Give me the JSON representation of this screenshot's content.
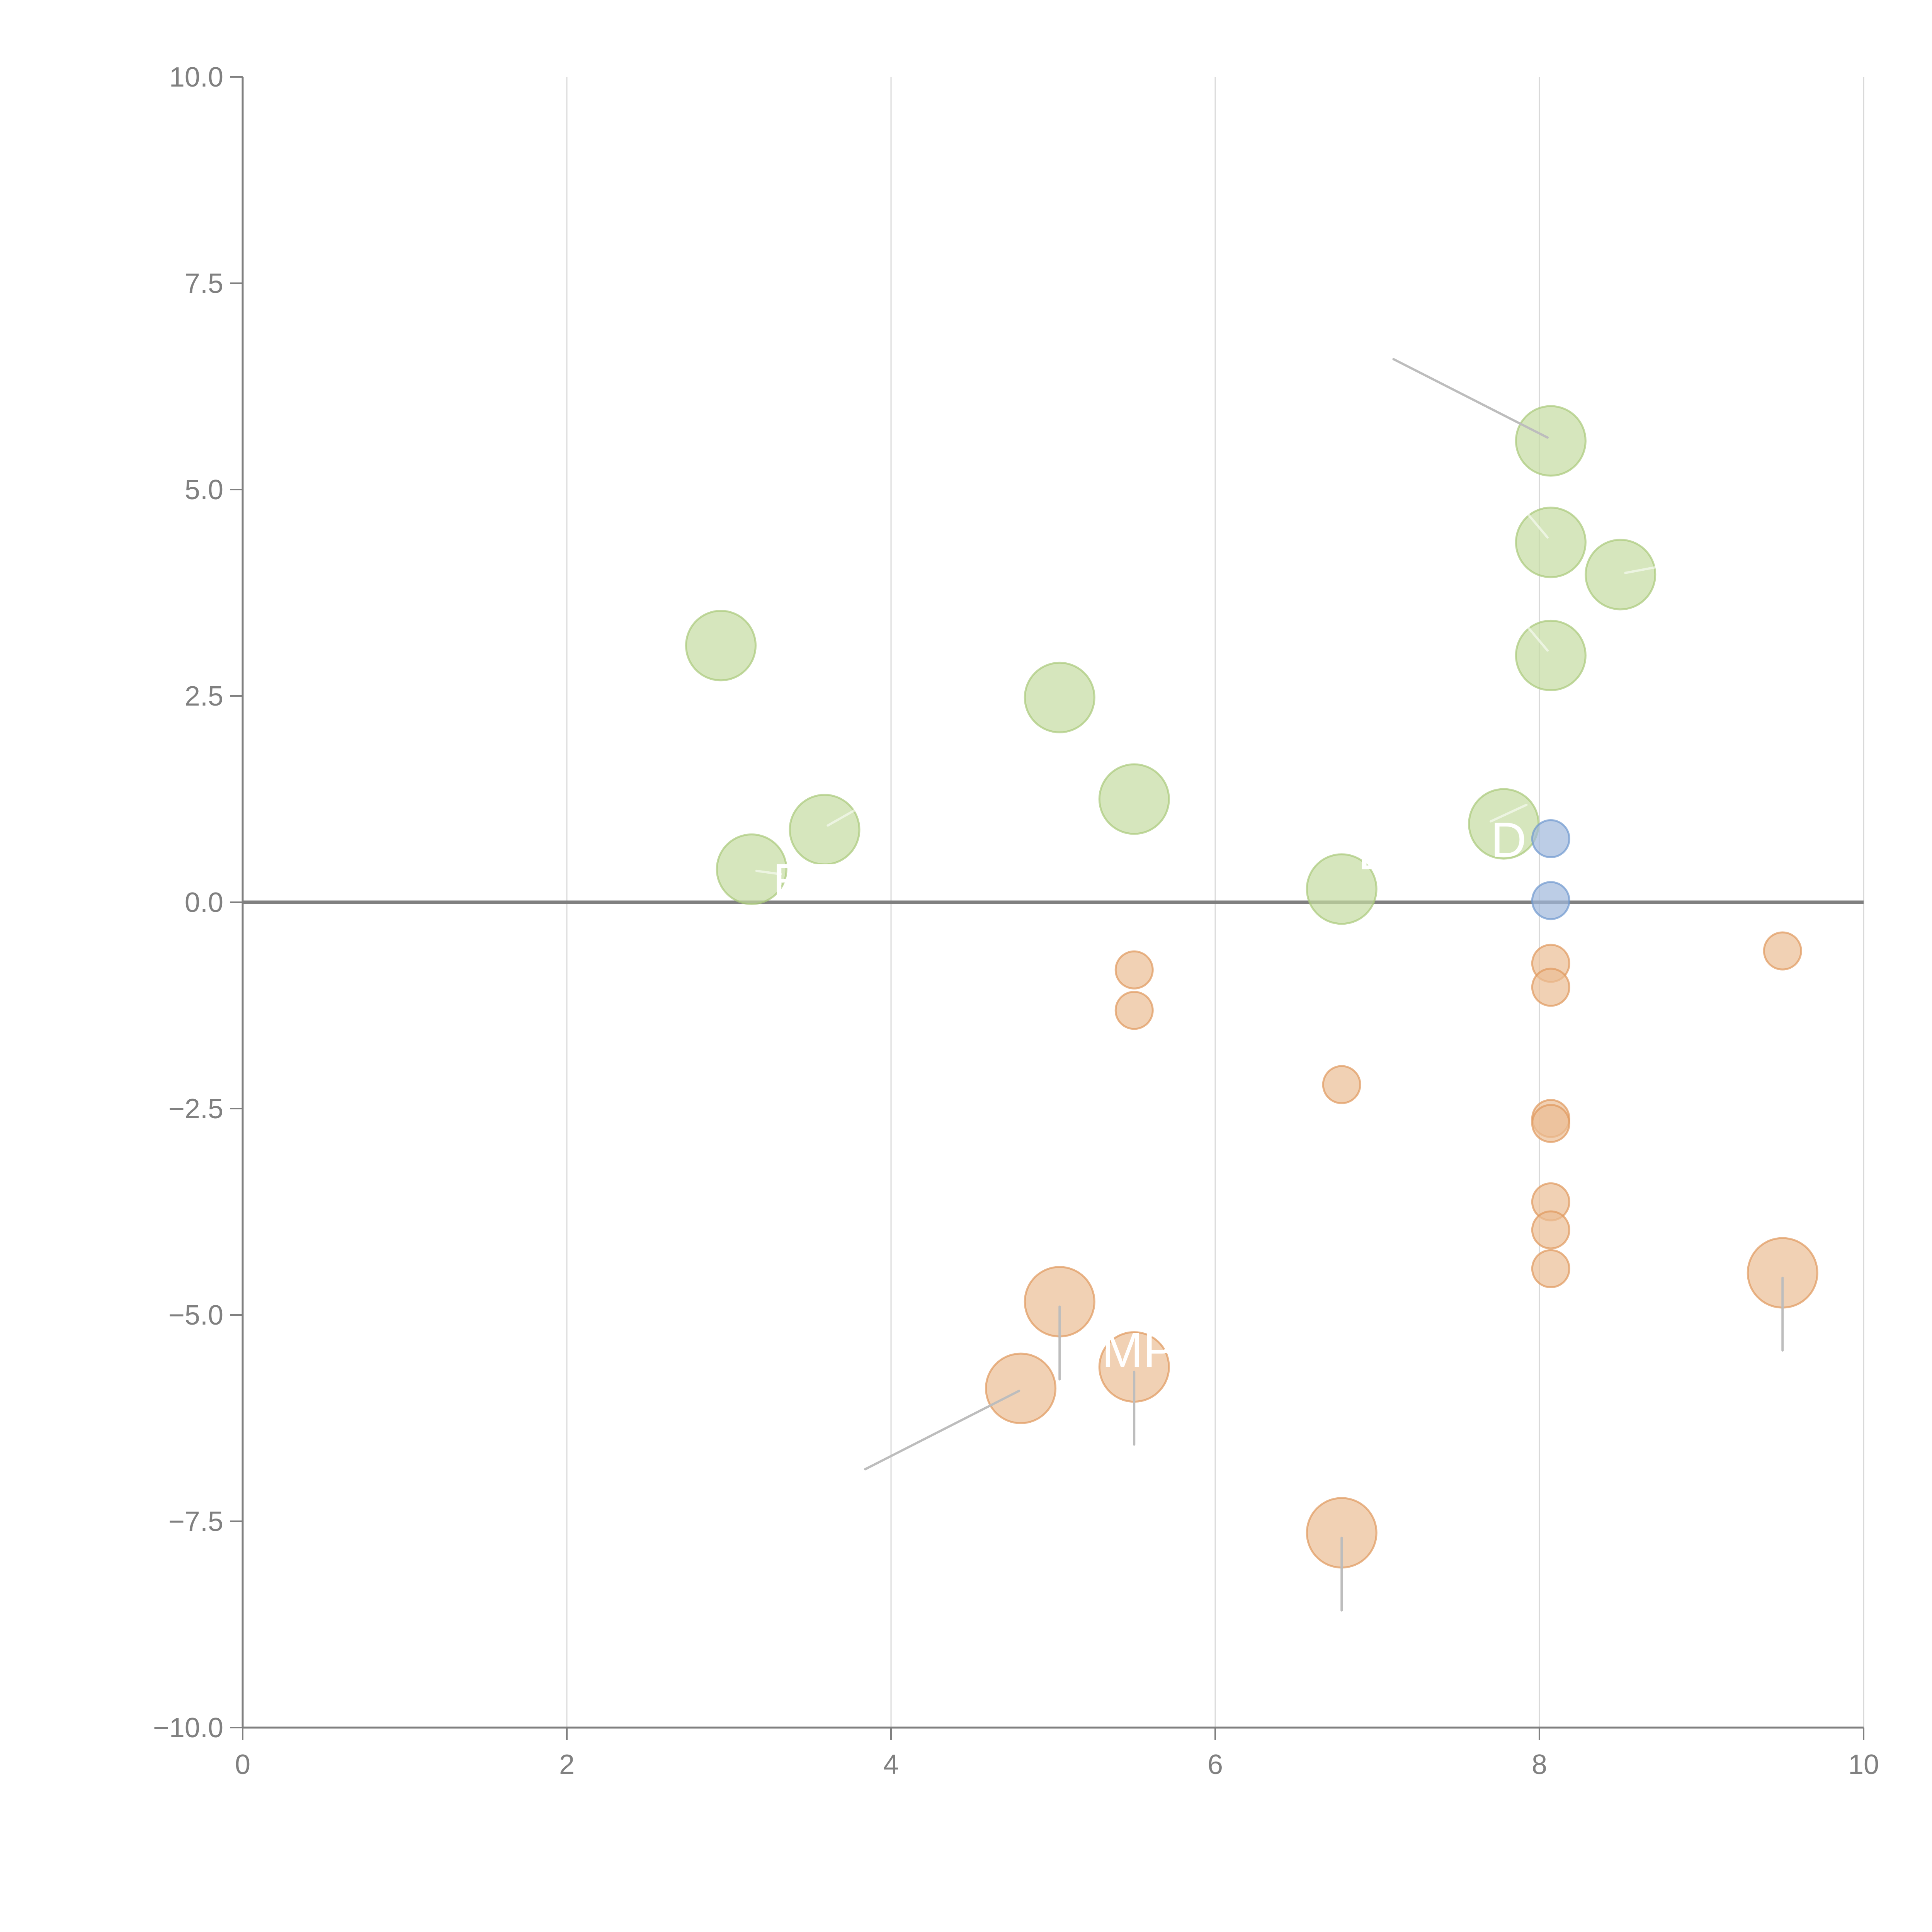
{
  "chart_data": {
    "type": "scatter",
    "title": "",
    "xlabel": "",
    "ylabel": "",
    "xlim": [
      0,
      10
    ],
    "ylim": [
      -10,
      10
    ],
    "x_ticks": [
      "0",
      "2",
      "4",
      "6",
      "8",
      "10"
    ],
    "x_tick_values": [
      0,
      2,
      4,
      6,
      8,
      10
    ],
    "y_ticks": [
      "10.0",
      "7.5",
      "5.0",
      "2.5",
      "0.0",
      "−2.5",
      "−5.0",
      "−7.5",
      "−10.0"
    ],
    "y_tick_values": [
      10,
      7.5,
      5,
      2.5,
      0,
      -2.5,
      -5,
      -7.5,
      -10
    ],
    "grid": "vertical",
    "zero_line": true,
    "legend": "none",
    "series": [
      {
        "name": "green",
        "color": "#c5dba1",
        "stroke": "#a9c97a",
        "size": "large",
        "points": [
          {
            "x": 2.95,
            "y": 3.11
          },
          {
            "x": 3.14,
            "y": 0.4
          },
          {
            "x": 3.59,
            "y": 0.88
          },
          {
            "x": 5.04,
            "y": 2.48
          },
          {
            "x": 5.5,
            "y": 1.25
          },
          {
            "x": 6.78,
            "y": 0.16
          },
          {
            "x": 7.78,
            "y": 0.95
          },
          {
            "x": 8.07,
            "y": 5.59
          },
          {
            "x": 8.07,
            "y": 4.36
          },
          {
            "x": 8.5,
            "y": 3.97
          },
          {
            "x": 8.07,
            "y": 2.99
          }
        ]
      },
      {
        "name": "blue",
        "color": "#9fb8dc",
        "stroke": "#6f98cf",
        "size": "small",
        "points": [
          {
            "x": 8.07,
            "y": 0.77
          },
          {
            "x": 8.07,
            "y": 0.02
          }
        ]
      },
      {
        "name": "orange",
        "color": "#ebbd94",
        "stroke": "#e0995c",
        "size": "mixed",
        "points": [
          {
            "x": 5.5,
            "y": -0.82,
            "size": "small"
          },
          {
            "x": 5.5,
            "y": -1.31,
            "size": "small"
          },
          {
            "x": 6.78,
            "y": -2.21,
            "size": "small"
          },
          {
            "x": 8.07,
            "y": -0.74,
            "size": "small"
          },
          {
            "x": 8.07,
            "y": -1.03,
            "size": "small"
          },
          {
            "x": 8.07,
            "y": -2.62,
            "size": "small"
          },
          {
            "x": 8.07,
            "y": -2.68,
            "size": "small"
          },
          {
            "x": 8.07,
            "y": -3.63,
            "size": "small"
          },
          {
            "x": 8.07,
            "y": -3.97,
            "size": "small"
          },
          {
            "x": 8.07,
            "y": -4.44,
            "size": "small"
          },
          {
            "x": 9.5,
            "y": -0.59,
            "size": "small"
          },
          {
            "x": 5.04,
            "y": -4.84,
            "size": "large"
          },
          {
            "x": 4.8,
            "y": -5.89,
            "size": "large"
          },
          {
            "x": 5.5,
            "y": -5.63,
            "size": "large"
          },
          {
            "x": 6.78,
            "y": -7.64,
            "size": "large"
          },
          {
            "x": 9.5,
            "y": -4.49,
            "size": "large"
          }
        ]
      }
    ],
    "leader_lines": [
      {
        "from": {
          "x": 7.1,
          "y": 6.58
        },
        "to": {
          "x": 8.05,
          "y": 5.63
        },
        "style": "gray"
      },
      {
        "from": {
          "x": 3.84,
          "y": -6.87
        },
        "to": {
          "x": 4.79,
          "y": -5.92
        },
        "style": "gray"
      },
      {
        "from": {
          "x": 5.04,
          "y": -4.9
        },
        "to": {
          "x": 5.04,
          "y": -5.78
        },
        "style": "gray"
      },
      {
        "from": {
          "x": 5.5,
          "y": -5.69
        },
        "to": {
          "x": 5.5,
          "y": -6.57
        },
        "style": "gray"
      },
      {
        "from": {
          "x": 6.78,
          "y": -7.7
        },
        "to": {
          "x": 6.78,
          "y": -8.58
        },
        "style": "gray"
      },
      {
        "from": {
          "x": 9.5,
          "y": -4.55
        },
        "to": {
          "x": 9.5,
          "y": -5.43
        },
        "style": "gray"
      },
      {
        "from": {
          "x": 3.61,
          "y": 0.93
        },
        "to": {
          "x": 3.78,
          "y": 1.12
        },
        "style": "white"
      },
      {
        "from": {
          "x": 3.17,
          "y": 0.38
        },
        "to": {
          "x": 3.32,
          "y": 0.34
        },
        "style": "white"
      },
      {
        "from": {
          "x": 7.7,
          "y": 0.98
        },
        "to": {
          "x": 7.92,
          "y": 1.18
        },
        "style": "white"
      },
      {
        "from": {
          "x": 8.05,
          "y": 4.42
        },
        "to": {
          "x": 7.93,
          "y": 4.7
        },
        "style": "white"
      },
      {
        "from": {
          "x": 8.05,
          "y": 3.05
        },
        "to": {
          "x": 7.93,
          "y": 3.33
        },
        "style": "white"
      },
      {
        "from": {
          "x": 8.53,
          "y": 3.99
        },
        "to": {
          "x": 8.72,
          "y": 4.06
        },
        "style": "white"
      }
    ],
    "annotations": [
      {
        "text": "MP",
        "x": 5.3,
        "y": -5.63
      },
      {
        "text": "D",
        "x": 7.7,
        "y": 0.55
      },
      {
        "text": "E",
        "x": 6.88,
        "y": 0.4
      },
      {
        "text": "ET",
        "x": 3.27,
        "y": 0.05
      }
    ]
  }
}
